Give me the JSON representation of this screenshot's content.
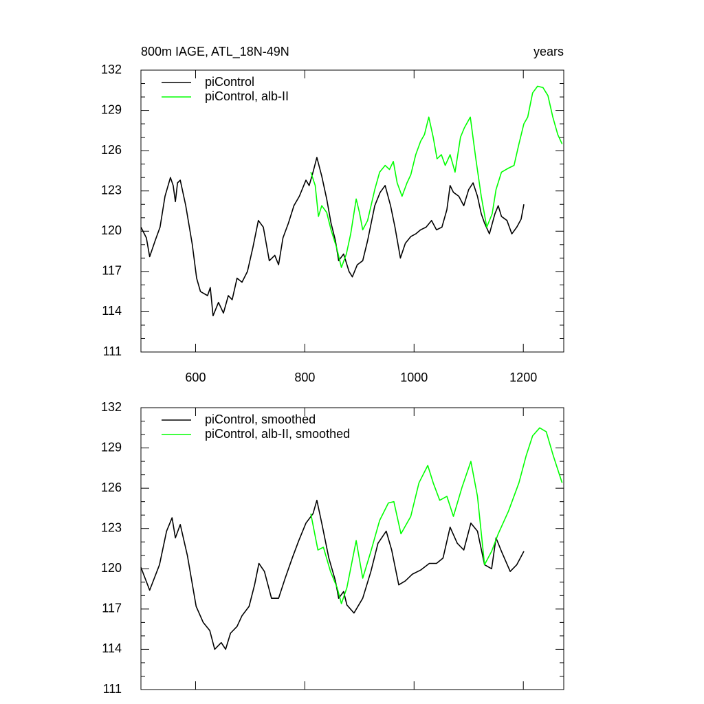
{
  "chart_data": [
    {
      "type": "line",
      "title": "800m IAGE, ATL_18N-49N",
      "right_title": "years",
      "xlim": [
        500,
        1274
      ],
      "xticks": [
        600,
        800,
        1000,
        1200
      ],
      "xtick_labels": true,
      "ylim": [
        111,
        132
      ],
      "yticks": [
        111,
        114,
        117,
        120,
        123,
        126,
        129,
        132
      ],
      "yminor_ticks": [
        112,
        113,
        115,
        116,
        118,
        119,
        121,
        122,
        124,
        125,
        127,
        128,
        130,
        131
      ],
      "series": [
        {
          "name": "piControl",
          "color": "#000000",
          "x": [
            500,
            510,
            516,
            526,
            535,
            544,
            554,
            559,
            563,
            567,
            572,
            582,
            594,
            602,
            609,
            622,
            627,
            632,
            642,
            651,
            660,
            667,
            676,
            685,
            695,
            705,
            715,
            724,
            735,
            745,
            752,
            760,
            770,
            780,
            790,
            802,
            808,
            815,
            822,
            831,
            840,
            848,
            856,
            862,
            871,
            881,
            887,
            896,
            906,
            915,
            928,
            938,
            947,
            957,
            965,
            975,
            984,
            994,
            1003,
            1012,
            1022,
            1032,
            1041,
            1051,
            1060,
            1066,
            1072,
            1082,
            1091,
            1100,
            1108,
            1116,
            1123,
            1129,
            1138,
            1148,
            1154,
            1160,
            1170,
            1179,
            1188,
            1196,
            1201
          ],
          "values": [
            120.3,
            119.5,
            118.1,
            119.3,
            120.3,
            122.6,
            124,
            123.4,
            122.2,
            123.6,
            123.8,
            121.9,
            119,
            116.5,
            115.5,
            115.2,
            115.8,
            113.7,
            114.7,
            113.9,
            115.2,
            114.9,
            116.5,
            116.2,
            117,
            118.8,
            120.8,
            120.3,
            117.8,
            118.2,
            117.5,
            119.5,
            120.6,
            121.9,
            122.6,
            123.8,
            123.4,
            124.4,
            125.5,
            124.1,
            122.4,
            120.6,
            119.3,
            117.8,
            118.3,
            117,
            116.6,
            117.5,
            117.8,
            119.3,
            121.9,
            122.9,
            123.4,
            121.9,
            120.3,
            118,
            119.1,
            119.6,
            119.8,
            120.1,
            120.3,
            120.8,
            120.1,
            120.3,
            121.6,
            123.4,
            122.9,
            122.6,
            121.9,
            123.1,
            123.6,
            122.6,
            121.3,
            120.6,
            119.8,
            121.3,
            121.9,
            121.1,
            120.8,
            119.8,
            120.3,
            120.9,
            122
          ]
        },
        {
          "name": "piControl, alb-II",
          "color": "#00ff00",
          "x": [
            811,
            819,
            825,
            831,
            840,
            848,
            858,
            867,
            876,
            884,
            894,
            900,
            906,
            915,
            928,
            937,
            947,
            955,
            962,
            969,
            978,
            987,
            994,
            1003,
            1012,
            1019,
            1027,
            1035,
            1042,
            1050,
            1057,
            1066,
            1075,
            1085,
            1092,
            1103,
            1113,
            1123,
            1133,
            1143,
            1150,
            1160,
            1173,
            1183,
            1192,
            1201,
            1208,
            1217,
            1226,
            1236,
            1245,
            1254,
            1263,
            1271
          ],
          "values": [
            124.4,
            123.4,
            121.1,
            121.9,
            121.4,
            120.1,
            118.8,
            117.3,
            118.3,
            119.8,
            122.4,
            121.4,
            120.1,
            120.8,
            123.1,
            124.4,
            124.9,
            124.6,
            125.2,
            123.6,
            122.6,
            123.6,
            124.2,
            125.7,
            126.7,
            127.2,
            128.5,
            127,
            125.4,
            125.7,
            124.9,
            125.7,
            124.4,
            127,
            127.7,
            128.5,
            125.4,
            122.6,
            120.3,
            121.3,
            123.1,
            124.4,
            124.7,
            124.9,
            126.5,
            128,
            128.5,
            130.3,
            130.8,
            130.7,
            130.1,
            128.5,
            127.2,
            126.5
          ]
        }
      ]
    },
    {
      "type": "line",
      "xlim": [
        500,
        1274
      ],
      "xticks": [
        600,
        800,
        1000,
        1200
      ],
      "xtick_labels": false,
      "ylim": [
        111,
        132
      ],
      "yticks": [
        111,
        114,
        117,
        120,
        123,
        126,
        129,
        132
      ],
      "yminor_ticks": [
        112,
        113,
        115,
        116,
        118,
        119,
        121,
        122,
        124,
        125,
        127,
        128,
        130,
        131
      ],
      "series": [
        {
          "name": "piControl, smoothed",
          "color": "#000000",
          "x": [
            500,
            516,
            534,
            547,
            557,
            563,
            572,
            585,
            601,
            614,
            626,
            635,
            647,
            655,
            664,
            676,
            685,
            698,
            708,
            716,
            726,
            739,
            752,
            764,
            777,
            789,
            802,
            815,
            822,
            831,
            844,
            856,
            862,
            871,
            877,
            890,
            906,
            921,
            934,
            949,
            959,
            972,
            984,
            997,
            1012,
            1028,
            1041,
            1053,
            1066,
            1079,
            1091,
            1104,
            1116,
            1129,
            1142,
            1150,
            1160,
            1176,
            1188,
            1201
          ],
          "values": [
            120.1,
            118.4,
            120.3,
            122.8,
            123.8,
            122.3,
            123.3,
            121,
            117.2,
            116,
            115.4,
            114,
            114.5,
            114,
            115.2,
            115.7,
            116.5,
            117.2,
            118.8,
            120.4,
            119.8,
            117.8,
            117.8,
            119.3,
            120.8,
            122.1,
            123.4,
            124.1,
            125.1,
            123.4,
            120.8,
            119.1,
            117.8,
            118.3,
            117.3,
            116.7,
            117.8,
            119.8,
            121.9,
            122.8,
            121.4,
            118.8,
            119.1,
            119.6,
            119.9,
            120.4,
            120.4,
            120.8,
            123.1,
            121.9,
            121.4,
            123.4,
            122.8,
            120.3,
            120,
            122.3,
            121.3,
            119.8,
            120.3,
            121.3
          ]
        },
        {
          "name": "piControl, alb-II, smoothed",
          "color": "#00ff00",
          "x": [
            811,
            824,
            834,
            847,
            859,
            867,
            877,
            894,
            906,
            921,
            937,
            953,
            963,
            976,
            994,
            1009,
            1025,
            1035,
            1047,
            1060,
            1072,
            1088,
            1104,
            1116,
            1129,
            1142,
            1154,
            1173,
            1192,
            1205,
            1217,
            1230,
            1242,
            1255,
            1271
          ],
          "values": [
            124.1,
            121.4,
            121.6,
            119.8,
            118.6,
            117.4,
            118.6,
            122.1,
            119.3,
            121.3,
            123.6,
            124.9,
            125,
            122.6,
            123.9,
            126.4,
            127.7,
            126.4,
            125.1,
            125.4,
            123.9,
            126.1,
            128,
            125.4,
            120.3,
            121.3,
            122.6,
            124.3,
            126.4,
            128.4,
            129.9,
            130.5,
            130.2,
            128.4,
            126.4
          ]
        }
      ]
    }
  ]
}
